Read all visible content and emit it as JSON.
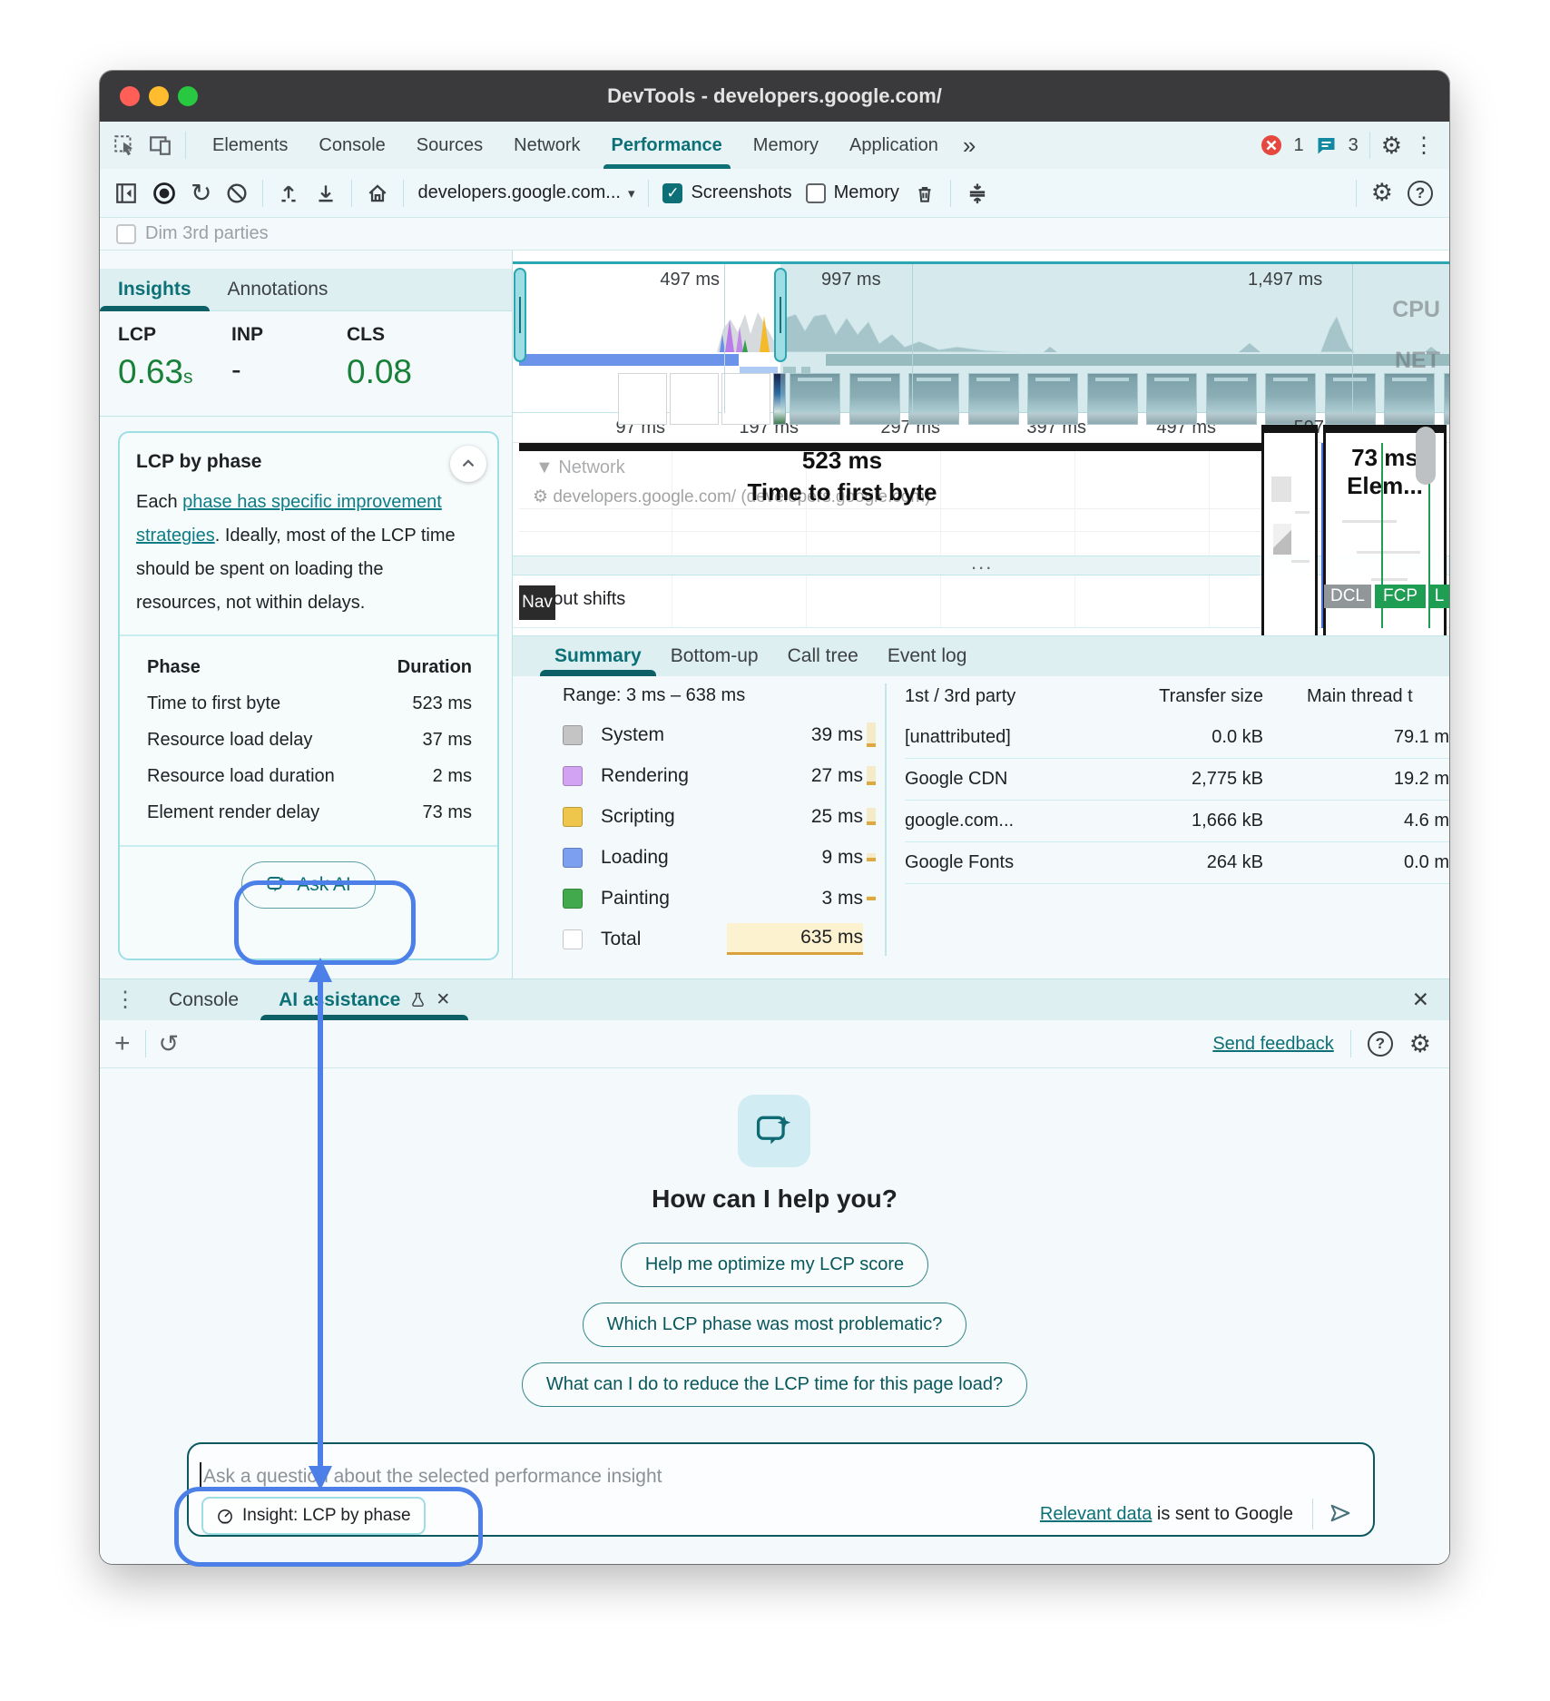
{
  "window": {
    "title": "DevTools - developers.google.com/"
  },
  "tabbar": {
    "tabs": [
      {
        "label": "Elements"
      },
      {
        "label": "Console"
      },
      {
        "label": "Sources"
      },
      {
        "label": "Network"
      },
      {
        "label": "Performance",
        "active": true
      },
      {
        "label": "Memory"
      },
      {
        "label": "Application"
      }
    ],
    "more": "»",
    "error_count": "1",
    "issue_count": "3"
  },
  "toolbar": {
    "url_selector": "developers.google.com...",
    "screenshots_label": "Screenshots",
    "memory_label": "Memory"
  },
  "dim_row": {
    "label": "Dim 3rd parties"
  },
  "sidebar": {
    "tabs": [
      {
        "label": "Insights",
        "active": true
      },
      {
        "label": "Annotations"
      }
    ],
    "metrics": {
      "lcp_label": "LCP",
      "lcp_value": "0.63",
      "lcp_unit": "s",
      "inp_label": "INP",
      "inp_value": "-",
      "cls_label": "CLS",
      "cls_value": "0.08"
    },
    "card": {
      "title": "LCP by phase",
      "desc_pre": "Each ",
      "desc_link": "phase has specific improvement strategies",
      "desc_post": ". Ideally, most of the LCP time should be spent on loading the resources, not within delays.",
      "table": {
        "col_phase": "Phase",
        "col_duration": "Duration",
        "rows": [
          [
            "Time to first byte",
            "523 ms"
          ],
          [
            "Resource load delay",
            "37 ms"
          ],
          [
            "Resource load duration",
            "2 ms"
          ],
          [
            "Element render delay",
            "73 ms"
          ]
        ]
      },
      "ask_ai": "Ask AI"
    }
  },
  "timeline": {
    "overview_labels": [
      "497 ms",
      "997 ms",
      "1,497 ms"
    ],
    "cpu_label": "CPU",
    "net_label": "NET",
    "ruler_ticks": [
      "97 ms",
      "197 ms",
      "297 ms",
      "397 ms",
      "497 ms",
      "597"
    ],
    "network_track": "Network",
    "network_request": "developers.google.com/ (developers.google.com)",
    "ttfb_value": "523 ms",
    "ttfb_label": "Time to first byte",
    "render_value": "73 ms",
    "render_label": "Elem...",
    "ellipsis": "...",
    "nav_badge": "Nav",
    "layout_shifts": "Layout shifts",
    "markers": {
      "dcl": "DCL",
      "fcp": "FCP",
      "l": "L"
    }
  },
  "summary": {
    "tabs": [
      {
        "label": "Summary",
        "active": true
      },
      {
        "label": "Bottom-up"
      },
      {
        "label": "Call tree"
      },
      {
        "label": "Event log"
      }
    ],
    "range": "Range: 3 ms – 638 ms",
    "legend": [
      {
        "name": "System",
        "value": "39 ms",
        "ms": 39,
        "color": "#c4c4c4"
      },
      {
        "name": "Rendering",
        "value": "27 ms",
        "ms": 27,
        "color": "#d1a3f2"
      },
      {
        "name": "Scripting",
        "value": "25 ms",
        "ms": 25,
        "color": "#efc64c"
      },
      {
        "name": "Loading",
        "value": "9 ms",
        "ms": 9,
        "color": "#7d9ff0"
      },
      {
        "name": "Painting",
        "value": "3 ms",
        "ms": 3,
        "color": "#42a94c"
      },
      {
        "name": "Total",
        "value": "635 ms",
        "ms": 635,
        "total": true,
        "color": "#ffffff"
      }
    ],
    "party_table": {
      "headers": [
        "1st / 3rd party",
        "Transfer size",
        "Main thread t"
      ],
      "rows": [
        [
          "[unattributed]",
          "0.0 kB",
          "79.1 m"
        ],
        [
          "Google CDN",
          "2,775 kB",
          "19.2 m"
        ],
        [
          "google.com...",
          "1,666 kB",
          "4.6 m"
        ],
        [
          "Google Fonts",
          "264 kB",
          "0.0 m"
        ]
      ]
    }
  },
  "drawer": {
    "tab_console": "Console",
    "tab_ai": "AI assistance",
    "send_feedback": "Send feedback",
    "greeting": "How can I help you?",
    "suggestions": [
      "Help me optimize my LCP score",
      "Which LCP phase was most problematic?",
      "What can I do to reduce the LCP time for this page load?"
    ],
    "input_placeholder": "Ask a question about the selected performance insight",
    "context_chip": "Insight: LCP by phase",
    "disclaimer_link": "Relevant data",
    "disclaimer_rest": " is sent to Google"
  },
  "colors": {
    "accent": "#0c7076",
    "green": "#188038",
    "annotation": "#4c80e8",
    "error": "#e5483e",
    "highlight_yellow": "#fcf2d0"
  }
}
